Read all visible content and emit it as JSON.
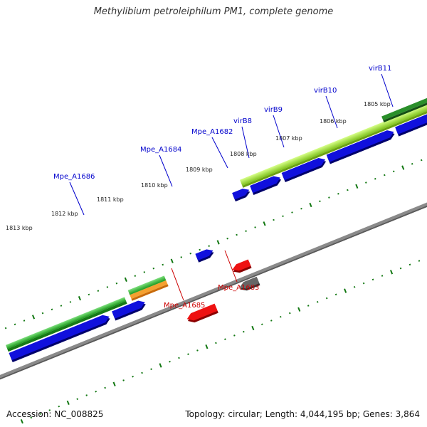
{
  "title": "Methylibium petroleiphilum PM1, complete genome",
  "footer": {
    "accession": "Accession: NC_008825",
    "topology": "Topology: circular; Length: 4,044,195 bp; Genes: 3,864"
  },
  "colors": {
    "forward_label": "#0000cc",
    "reverse_label": "#cc0000",
    "blue_gene": "#1010dd",
    "red_gene": "#ee1111",
    "gray_gene": "#666666",
    "backbone": "#888888",
    "tick": "#117711",
    "green_band": "#3cbf3c",
    "lime_band": "#a6e23c",
    "dark_green_band": "#2a7f2a",
    "orange_band": "#f08c1a"
  },
  "kbp_marks": [
    "1813 kbp",
    "1812 kbp",
    "1811 kbp",
    "1810 kbp",
    "1809 kbp",
    "1808 kbp",
    "1807 kbp",
    "1806 kbp",
    "1805 kbp"
  ],
  "gene_labels": [
    {
      "text": "Mpe_A1686",
      "strand": "forward"
    },
    {
      "text": "Mpe_A1684",
      "strand": "forward"
    },
    {
      "text": "Mpe_A1682",
      "strand": "forward"
    },
    {
      "text": "virB8",
      "strand": "forward"
    },
    {
      "text": "virB9",
      "strand": "forward"
    },
    {
      "text": "virB10",
      "strand": "forward"
    },
    {
      "text": "virB11",
      "strand": "forward"
    },
    {
      "text": "Mpe_A1685",
      "strand": "reverse"
    },
    {
      "text": "Mpe_A1683",
      "strand": "reverse"
    }
  ]
}
